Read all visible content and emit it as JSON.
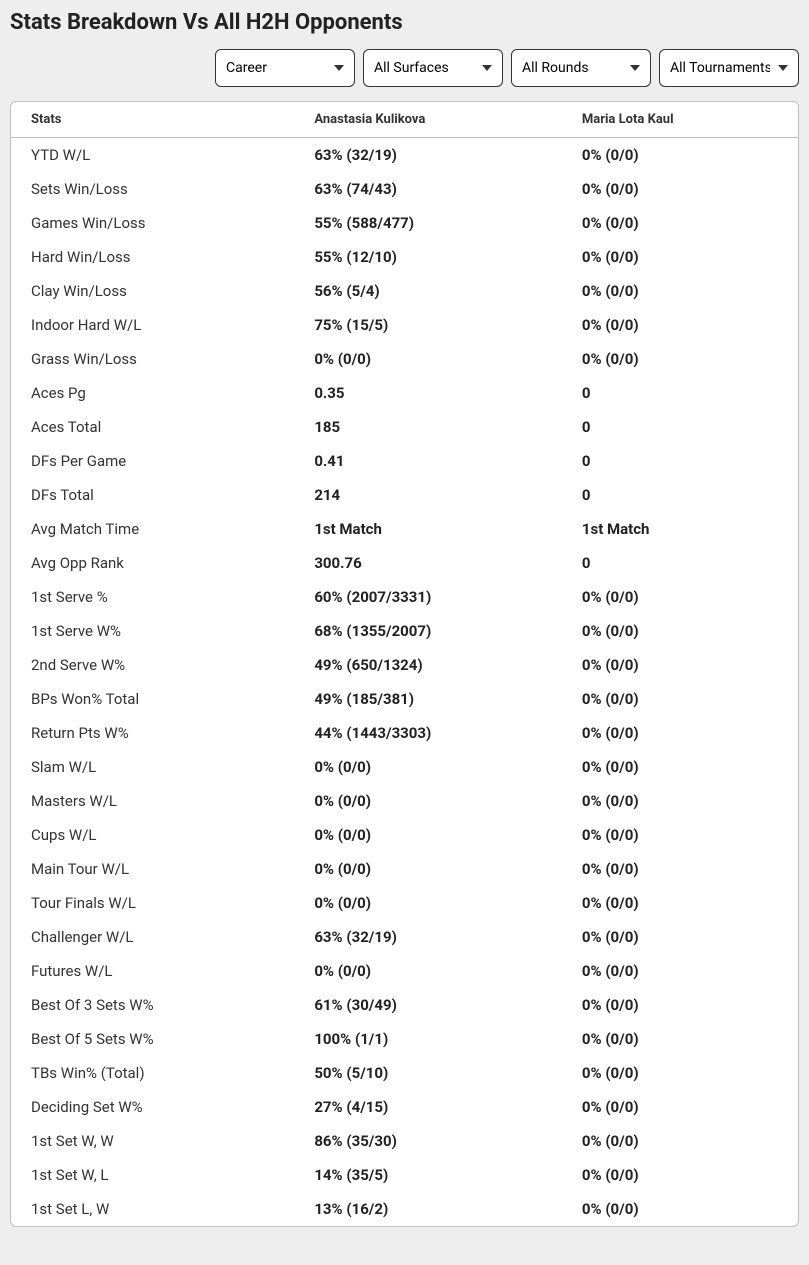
{
  "title": "Stats Breakdown Vs All H2H Opponents",
  "filters": {
    "career": "Career",
    "surfaces": "All Surfaces",
    "rounds": "All Rounds",
    "tournaments": "All Tournaments"
  },
  "table": {
    "headers": {
      "stats": "Stats",
      "player1": "Anastasia Kulikova",
      "player2": "Maria Lota Kaul"
    },
    "rows": [
      {
        "stat": "YTD W/L",
        "p1": "63% (32/19)",
        "p2": "0% (0/0)"
      },
      {
        "stat": "Sets Win/Loss",
        "p1": "63% (74/43)",
        "p2": "0% (0/0)"
      },
      {
        "stat": "Games Win/Loss",
        "p1": "55% (588/477)",
        "p2": "0% (0/0)"
      },
      {
        "stat": "Hard Win/Loss",
        "p1": "55% (12/10)",
        "p2": "0% (0/0)"
      },
      {
        "stat": "Clay Win/Loss",
        "p1": "56% (5/4)",
        "p2": "0% (0/0)"
      },
      {
        "stat": "Indoor Hard W/L",
        "p1": "75% (15/5)",
        "p2": "0% (0/0)"
      },
      {
        "stat": "Grass Win/Loss",
        "p1": "0% (0/0)",
        "p2": "0% (0/0)"
      },
      {
        "stat": "Aces Pg",
        "p1": "0.35",
        "p2": "0"
      },
      {
        "stat": "Aces Total",
        "p1": "185",
        "p2": "0"
      },
      {
        "stat": "DFs Per Game",
        "p1": "0.41",
        "p2": "0"
      },
      {
        "stat": "DFs Total",
        "p1": "214",
        "p2": "0"
      },
      {
        "stat": "Avg Match Time",
        "p1": "1st Match",
        "p2": "1st Match"
      },
      {
        "stat": "Avg Opp Rank",
        "p1": "300.76",
        "p2": "0"
      },
      {
        "stat": "1st Serve %",
        "p1": "60% (2007/3331)",
        "p2": "0% (0/0)"
      },
      {
        "stat": "1st Serve W%",
        "p1": "68% (1355/2007)",
        "p2": "0% (0/0)"
      },
      {
        "stat": "2nd Serve W%",
        "p1": "49% (650/1324)",
        "p2": "0% (0/0)"
      },
      {
        "stat": "BPs Won% Total",
        "p1": "49% (185/381)",
        "p2": "0% (0/0)"
      },
      {
        "stat": "Return Pts W%",
        "p1": "44% (1443/3303)",
        "p2": "0% (0/0)"
      },
      {
        "stat": "Slam W/L",
        "p1": "0% (0/0)",
        "p2": "0% (0/0)"
      },
      {
        "stat": "Masters W/L",
        "p1": "0% (0/0)",
        "p2": "0% (0/0)"
      },
      {
        "stat": "Cups W/L",
        "p1": "0% (0/0)",
        "p2": "0% (0/0)"
      },
      {
        "stat": "Main Tour W/L",
        "p1": "0% (0/0)",
        "p2": "0% (0/0)"
      },
      {
        "stat": "Tour Finals W/L",
        "p1": "0% (0/0)",
        "p2": "0% (0/0)"
      },
      {
        "stat": "Challenger W/L",
        "p1": "63% (32/19)",
        "p2": "0% (0/0)"
      },
      {
        "stat": "Futures W/L",
        "p1": "0% (0/0)",
        "p2": "0% (0/0)"
      },
      {
        "stat": "Best Of 3 Sets W%",
        "p1": "61% (30/49)",
        "p2": "0% (0/0)"
      },
      {
        "stat": "Best Of 5 Sets W%",
        "p1": "100% (1/1)",
        "p2": "0% (0/0)"
      },
      {
        "stat": "TBs Win% (Total)",
        "p1": "50% (5/10)",
        "p2": "0% (0/0)"
      },
      {
        "stat": "Deciding Set W%",
        "p1": "27% (4/15)",
        "p2": "0% (0/0)"
      },
      {
        "stat": "1st Set W, W",
        "p1": "86% (35/30)",
        "p2": "0% (0/0)"
      },
      {
        "stat": "1st Set W, L",
        "p1": "14% (35/5)",
        "p2": "0% (0/0)"
      },
      {
        "stat": "1st Set L, W",
        "p1": "13% (16/2)",
        "p2": "0% (0/0)"
      }
    ]
  }
}
